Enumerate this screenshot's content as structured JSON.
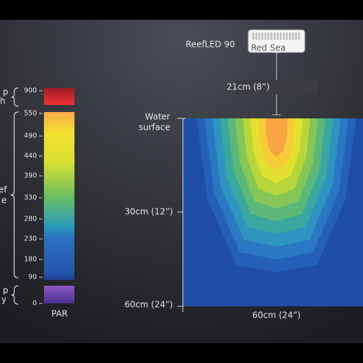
{
  "side_labels": [
    "p",
    "h",
    "ef",
    "e",
    "p",
    "y"
  ],
  "scale": {
    "ticks": [
      900,
      550,
      490,
      440,
      390,
      330,
      280,
      230,
      180,
      90,
      0
    ],
    "unit": "PAR"
  },
  "device": {
    "name": "ReefLED 90",
    "brand": "Red Sea",
    "height": "21cm (8”)"
  },
  "map": {
    "surface": [
      "Water",
      "surface"
    ],
    "depth_mid": "30cm (12”)",
    "depth_bottom": "60cm (24”)",
    "width": "60cm (24”)"
  }
}
